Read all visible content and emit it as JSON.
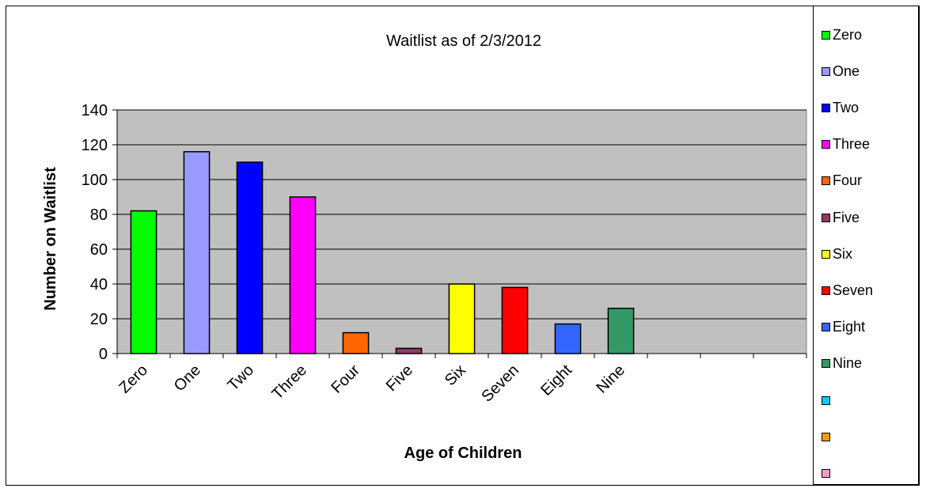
{
  "chart_data": {
    "type": "bar",
    "title": "Waitlist as of 2/3/2012",
    "xlabel": "Age of Children",
    "ylabel": "Number on Waitlist",
    "ylim": [
      0,
      140
    ],
    "yticks": [
      "0",
      "20",
      "40",
      "60",
      "80",
      "100",
      "120",
      "140"
    ],
    "grid": true,
    "legend_position": "right",
    "plot_background": "#c0c0c0",
    "categories": [
      "Zero",
      "One",
      "Two",
      "Three",
      "Four",
      "Five",
      "Six",
      "Seven",
      "Eight",
      "Nine",
      "",
      "",
      ""
    ],
    "values": [
      82,
      116,
      110,
      90,
      12,
      3,
      40,
      38,
      17,
      26,
      null,
      null,
      null
    ],
    "colors": [
      "#00ff00",
      "#9999ff",
      "#0000ff",
      "#ff00ff",
      "#ff6600",
      "#993366",
      "#ffff00",
      "#ff0000",
      "#3366ff",
      "#339966",
      "#00ccff",
      "#ff9900",
      "#ff99cc"
    ],
    "legend": [
      {
        "label": "Zero",
        "color": "#00ff00"
      },
      {
        "label": "One",
        "color": "#9999ff"
      },
      {
        "label": "Two",
        "color": "#0000ff"
      },
      {
        "label": "Three",
        "color": "#ff00ff"
      },
      {
        "label": "Four",
        "color": "#ff6600"
      },
      {
        "label": "Five",
        "color": "#993366"
      },
      {
        "label": "Six",
        "color": "#ffff00"
      },
      {
        "label": "Seven",
        "color": "#ff0000"
      },
      {
        "label": "Eight",
        "color": "#3366ff"
      },
      {
        "label": "Nine",
        "color": "#339966"
      },
      {
        "label": "",
        "color": "#00ccff"
      },
      {
        "label": "",
        "color": "#ff9900"
      },
      {
        "label": "",
        "color": "#ff99cc"
      }
    ]
  }
}
